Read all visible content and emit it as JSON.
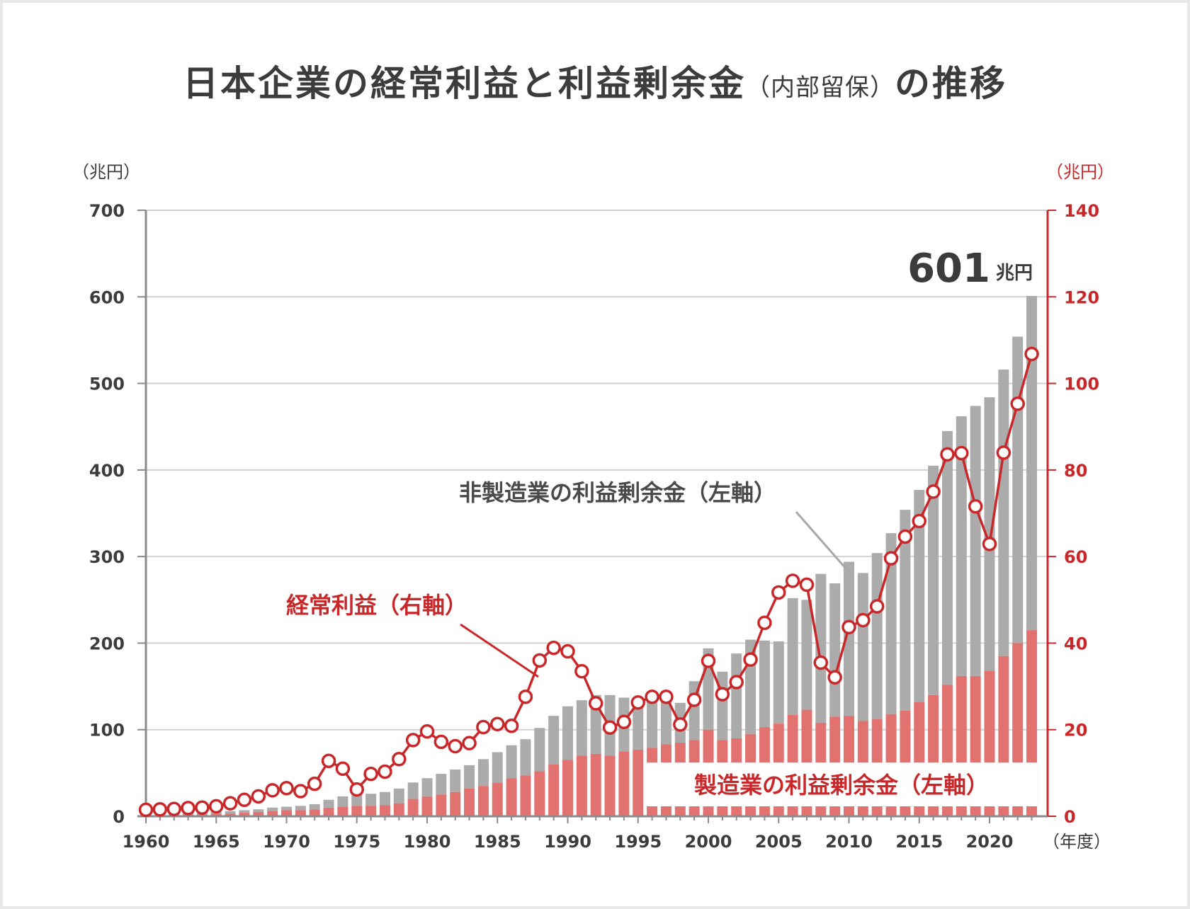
{
  "title": {
    "main": "日本企業の経常利益と利益剰余金",
    "paren": "（内部留保）",
    "suffix": "の推移"
  },
  "axes": {
    "left_unit": "（兆円）",
    "right_unit": "（兆円）",
    "x_unit": "（年度）"
  },
  "annotations": {
    "non_manufacturing": "非製造業の利益剰余金（左軸）",
    "ordinary_profit": "経常利益（右軸）",
    "manufacturing": "製造業の利益剰余金（左軸）",
    "total_value": "601",
    "total_unit": "兆円"
  },
  "colors": {
    "manufacturing": "#e2726f",
    "non_manufacturing": "#ababab",
    "ordinary_profit": "#c8282a"
  },
  "chart_data": {
    "type": "bar",
    "years": [
      1960,
      1961,
      1962,
      1963,
      1964,
      1965,
      1966,
      1967,
      1968,
      1969,
      1970,
      1971,
      1972,
      1973,
      1974,
      1975,
      1976,
      1977,
      1978,
      1979,
      1980,
      1981,
      1982,
      1983,
      1984,
      1985,
      1986,
      1987,
      1988,
      1989,
      1990,
      1991,
      1992,
      1993,
      1994,
      1995,
      1996,
      1997,
      1998,
      1999,
      2000,
      2001,
      2002,
      2003,
      2004,
      2005,
      2006,
      2007,
      2008,
      2009,
      2010,
      2011,
      2012,
      2013,
      2014,
      2015,
      2016,
      2017,
      2018,
      2019,
      2020,
      2021,
      2022,
      2023
    ],
    "x_ticks": [
      "1960",
      "1965",
      "1970",
      "1975",
      "1980",
      "1985",
      "1990",
      "1995",
      "2000",
      "2005",
      "2010",
      "2015",
      "2020"
    ],
    "left_ticks": [
      "0",
      "100",
      "200",
      "300",
      "400",
      "500",
      "600",
      "700"
    ],
    "right_ticks": [
      "0",
      "20",
      "40",
      "60",
      "80",
      "100",
      "120",
      "140"
    ],
    "ylim_left": [
      0,
      700
    ],
    "ylim_right": [
      0,
      140
    ],
    "grid": true,
    "series": [
      {
        "name": "製造業の利益剰余金（左軸）",
        "axis": "left",
        "kind": "stacked-bar",
        "values": [
          1,
          1,
          2,
          2,
          2,
          3,
          3,
          4,
          5,
          6,
          7,
          7,
          8,
          10,
          11,
          12,
          12,
          13,
          15,
          20,
          23,
          25,
          28,
          32,
          35,
          39,
          44,
          47,
          52,
          60,
          65,
          70,
          72,
          70,
          75,
          77,
          79,
          83,
          85,
          88,
          100,
          88,
          90,
          95,
          103,
          107,
          117,
          123,
          108,
          115,
          116,
          110,
          112,
          118,
          122,
          132,
          140,
          152,
          162,
          162,
          168,
          185,
          200,
          215
        ]
      },
      {
        "name": "非製造業の利益剰余金（左軸）",
        "axis": "left",
        "kind": "stacked-bar",
        "values": [
          1,
          1,
          1,
          2,
          2,
          2,
          3,
          3,
          3,
          4,
          4,
          5,
          6,
          9,
          12,
          13,
          14,
          15,
          17,
          19,
          21,
          24,
          26,
          27,
          31,
          35,
          38,
          42,
          50,
          56,
          62,
          64,
          68,
          70,
          62,
          57,
          55,
          53,
          46,
          68,
          94,
          79,
          98,
          109,
          100,
          95,
          135,
          127,
          172,
          154,
          178,
          171,
          192,
          209,
          232,
          245,
          265,
          293,
          300,
          312,
          316,
          331,
          354,
          386
        ]
      },
      {
        "name": "経常利益（右軸）",
        "axis": "right",
        "kind": "line",
        "values": [
          1.5,
          1.6,
          1.7,
          1.9,
          2,
          2.3,
          3,
          3.8,
          4.6,
          6,
          6.5,
          5.8,
          7.5,
          12.8,
          11,
          6.2,
          9.8,
          10.3,
          13.2,
          17.6,
          19.6,
          17.2,
          16.2,
          16.9,
          20.6,
          21.3,
          20.9,
          27.6,
          36,
          38.9,
          38.1,
          33.5,
          26.1,
          20.5,
          21.8,
          26.3,
          27.6,
          27.6,
          21.2,
          26.9,
          35.9,
          28.2,
          31.0,
          36.2,
          44.7,
          51.7,
          54.4,
          53.5,
          35.5,
          32.1,
          43.7,
          45.3,
          48.5,
          59.6,
          64.6,
          68.2,
          75.0,
          83.6,
          83.9,
          71.6,
          62.9,
          84.0,
          95.3,
          106.8
        ]
      }
    ]
  }
}
